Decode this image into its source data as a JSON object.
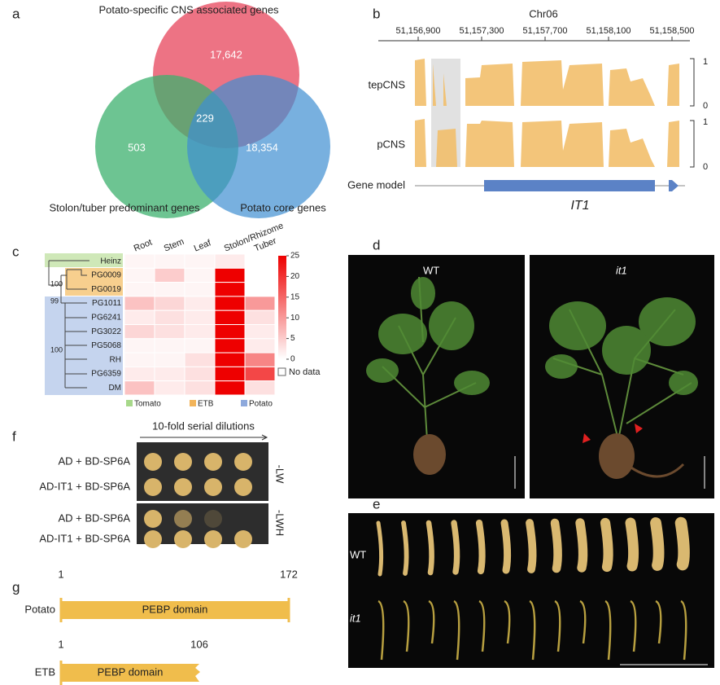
{
  "panels": {
    "a": {
      "label": "a",
      "title": "Potato-specific CNS associated genes",
      "left_label": "Stolon/tuber predominant genes",
      "right_label": "Potato core genes",
      "regions": [
        "17,642",
        "503",
        "229",
        "18,354"
      ]
    },
    "b": {
      "label": "b",
      "chromosome": "Chr06",
      "positions": [
        "51,156,900",
        "51,157,300",
        "51,157,700",
        "51,158,100",
        "51,158,500"
      ],
      "tracks": [
        "tepCNS",
        "pCNS"
      ],
      "track_scale": [
        [
          "1",
          "0"
        ],
        [
          "1",
          "0"
        ]
      ],
      "gene_model": "Gene model",
      "gene": "IT1"
    },
    "c": {
      "label": "c",
      "columns": [
        "Root",
        "Stem",
        "Leaf",
        "Stolon/Rhizome",
        "Tuber"
      ],
      "rows": [
        "Heinz",
        "PG0009",
        "PG0019",
        "PG1011",
        "PG6241",
        "PG3022",
        "PG5068",
        "RH",
        "PG6359",
        "DM"
      ],
      "bootstrap": [
        "100",
        "99",
        "100"
      ],
      "values": [
        [
          1,
          1,
          1,
          2,
          null
        ],
        [
          1,
          5,
          1,
          25,
          null
        ],
        [
          1,
          1,
          1,
          25,
          null
        ],
        [
          6,
          4,
          2,
          25,
          10
        ],
        [
          2,
          3,
          2,
          25,
          3
        ],
        [
          4,
          3,
          2,
          25,
          2
        ],
        [
          1,
          1,
          1,
          25,
          2
        ],
        [
          1,
          1,
          3,
          25,
          12
        ],
        [
          2,
          2,
          3,
          25,
          18
        ],
        [
          6,
          2,
          3,
          25,
          3
        ]
      ],
      "colorbar_lim": [
        0,
        25
      ],
      "colorbar_ticks": [
        0,
        5,
        10,
        15,
        20,
        25
      ],
      "no_data": "No data",
      "legend": [
        "Tomato",
        "ETB",
        "Potato"
      ]
    },
    "d": {
      "label": "d",
      "panels": [
        "WT",
        "it1"
      ]
    },
    "e": {
      "label": "e",
      "rows": [
        "WT",
        "it1"
      ]
    },
    "f": {
      "label": "f",
      "header": "10-fold serial dilutions",
      "rows": [
        "AD + BD-SP6A",
        "AD-IT1 + BD-SP6A",
        "AD + BD-SP6A",
        "AD-IT1 + BD-SP6A"
      ],
      "media": [
        "-LW",
        "-LWH"
      ]
    },
    "g": {
      "label": "g",
      "proteins": [
        {
          "name": "Potato",
          "start": "1",
          "end": "172",
          "domain": "PEBP domain"
        },
        {
          "name": "ETB",
          "start": "1",
          "end": "106",
          "domain": "PEBP domain"
        }
      ]
    }
  }
}
